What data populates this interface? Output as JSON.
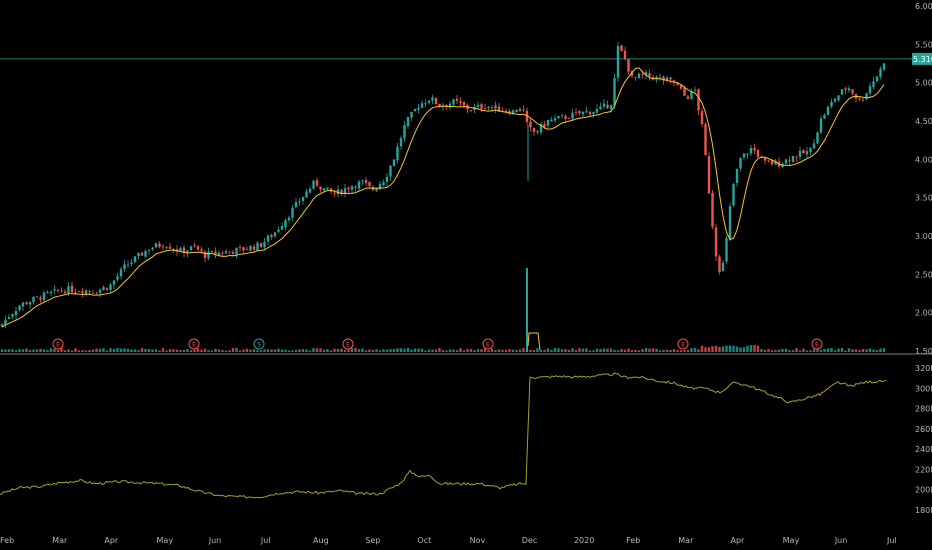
{
  "chart_data": [
    {
      "type": "candlestick",
      "panel": "price",
      "title": "",
      "colors": {
        "up": "#26a69a",
        "down": "#ef5350",
        "ma": "#f4c430",
        "background": "#000000",
        "hline": "#26a69a",
        "volume_up": "#26a69a",
        "volume_down": "#ef5350"
      },
      "y_ticks": [
        "6.000",
        "5.500",
        "5.000",
        "4.500",
        "4.000",
        "3.500",
        "3.000",
        "2.500",
        "2.000",
        "1.500"
      ],
      "ylim": [
        1.5,
        6.0
      ],
      "last_price_label": "5.310",
      "hline_value": 5.31,
      "x_tick_labels": [
        "Feb",
        "Mar",
        "Apr",
        "May",
        "Jun",
        "Jul",
        "Aug",
        "Sep",
        "Oct",
        "Nov",
        "Dec",
        "2020",
        "Feb",
        "Mar",
        "Apr",
        "May",
        "Jun",
        "Jul"
      ],
      "price_path": [
        [
          0,
          1.82
        ],
        [
          8,
          1.95
        ],
        [
          20,
          2.1
        ],
        [
          35,
          2.18
        ],
        [
          50,
          2.25
        ],
        [
          65,
          2.3
        ],
        [
          80,
          2.3
        ],
        [
          95,
          2.28
        ],
        [
          110,
          2.35
        ],
        [
          125,
          2.6
        ],
        [
          140,
          2.75
        ],
        [
          150,
          2.85
        ],
        [
          165,
          2.9
        ],
        [
          180,
          2.8
        ],
        [
          195,
          2.85
        ],
        [
          205,
          2.75
        ],
        [
          220,
          2.78
        ],
        [
          240,
          2.82
        ],
        [
          260,
          2.88
        ],
        [
          275,
          3.05
        ],
        [
          290,
          3.3
        ],
        [
          305,
          3.55
        ],
        [
          315,
          3.7
        ],
        [
          325,
          3.6
        ],
        [
          335,
          3.55
        ],
        [
          350,
          3.65
        ],
        [
          362,
          3.7
        ],
        [
          372,
          3.6
        ],
        [
          385,
          3.75
        ],
        [
          395,
          4.05
        ],
        [
          405,
          4.45
        ],
        [
          418,
          4.7
        ],
        [
          430,
          4.8
        ],
        [
          440,
          4.7
        ],
        [
          455,
          4.75
        ],
        [
          470,
          4.65
        ],
        [
          485,
          4.7
        ],
        [
          500,
          4.65
        ],
        [
          515,
          4.62
        ],
        [
          522,
          4.7
        ],
        [
          528,
          4.4
        ],
        [
          535,
          4.35
        ],
        [
          548,
          4.5
        ],
        [
          565,
          4.55
        ],
        [
          580,
          4.6
        ],
        [
          600,
          4.65
        ],
        [
          612,
          4.75
        ],
        [
          618,
          5.45
        ],
        [
          624,
          5.35
        ],
        [
          632,
          5.05
        ],
        [
          645,
          5.1
        ],
        [
          660,
          5.05
        ],
        [
          675,
          5.0
        ],
        [
          686,
          4.8
        ],
        [
          695,
          4.9
        ],
        [
          703,
          4.35
        ],
        [
          712,
          3.2
        ],
        [
          718,
          2.55
        ],
        [
          724,
          2.65
        ],
        [
          732,
          3.6
        ],
        [
          740,
          4.0
        ],
        [
          752,
          4.15
        ],
        [
          765,
          3.95
        ],
        [
          780,
          3.95
        ],
        [
          795,
          4.05
        ],
        [
          810,
          4.1
        ],
        [
          822,
          4.55
        ],
        [
          835,
          4.8
        ],
        [
          848,
          4.95
        ],
        [
          860,
          4.75
        ],
        [
          872,
          5.0
        ],
        [
          880,
          5.15
        ],
        [
          886,
          5.35
        ]
      ],
      "earnings_marker_label": "E",
      "split_marker_label": "S",
      "earnings_positions": [
        58,
        194,
        348,
        488,
        683,
        817
      ],
      "split_positions": [
        259
      ]
    },
    {
      "type": "line",
      "panel": "indicator",
      "title": "",
      "y_ticks": [
        "320M",
        "300M",
        "280M",
        "260M",
        "240M",
        "220M",
        "200M",
        "180M"
      ],
      "ylim": [
        180,
        320
      ],
      "x_tick_labels": [],
      "line_path": [
        [
          0,
          196
        ],
        [
          20,
          202
        ],
        [
          40,
          203
        ],
        [
          60,
          207
        ],
        [
          80,
          209
        ],
        [
          95,
          206
        ],
        [
          120,
          208
        ],
        [
          140,
          207
        ],
        [
          160,
          206
        ],
        [
          180,
          204
        ],
        [
          200,
          198
        ],
        [
          220,
          194
        ],
        [
          240,
          193
        ],
        [
          260,
          193
        ],
        [
          280,
          197
        ],
        [
          300,
          198
        ],
        [
          320,
          197
        ],
        [
          340,
          199
        ],
        [
          360,
          196
        ],
        [
          380,
          196
        ],
        [
          400,
          206
        ],
        [
          410,
          218
        ],
        [
          420,
          213
        ],
        [
          430,
          214
        ],
        [
          440,
          206
        ],
        [
          460,
          206
        ],
        [
          480,
          206
        ],
        [
          500,
          202
        ],
        [
          510,
          204
        ],
        [
          520,
          206
        ],
        [
          527,
          206
        ],
        [
          529,
          311
        ],
        [
          545,
          311
        ],
        [
          560,
          312
        ],
        [
          575,
          311
        ],
        [
          590,
          312
        ],
        [
          605,
          313
        ],
        [
          615,
          314
        ],
        [
          625,
          311
        ],
        [
          640,
          311
        ],
        [
          660,
          307
        ],
        [
          675,
          305
        ],
        [
          690,
          300
        ],
        [
          705,
          300
        ],
        [
          720,
          296
        ],
        [
          735,
          306
        ],
        [
          750,
          302
        ],
        [
          765,
          296
        ],
        [
          780,
          290
        ],
        [
          790,
          286
        ],
        [
          805,
          290
        ],
        [
          820,
          294
        ],
        [
          838,
          306
        ],
        [
          850,
          302
        ],
        [
          865,
          306
        ],
        [
          880,
          307
        ],
        [
          886,
          307
        ]
      ]
    }
  ]
}
